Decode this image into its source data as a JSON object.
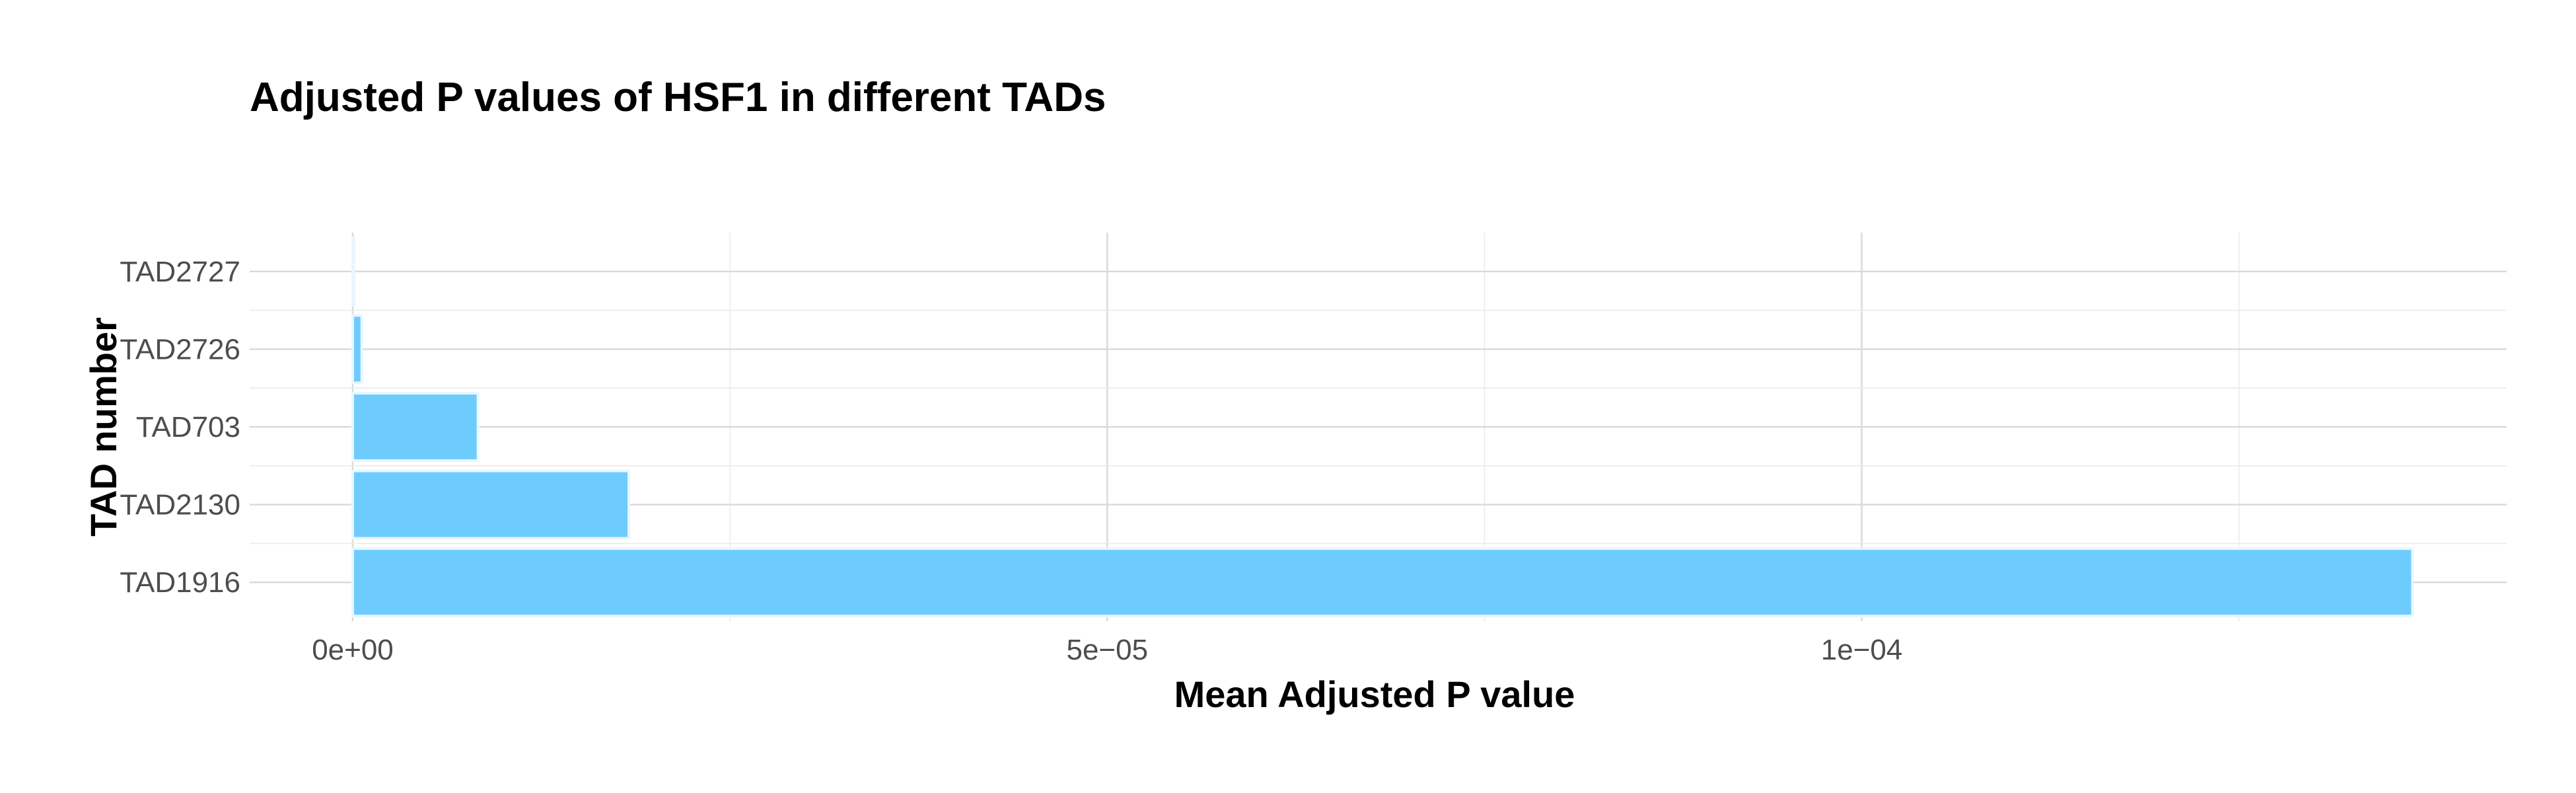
{
  "chart_data": {
    "type": "bar",
    "orientation": "horizontal",
    "title": "Adjusted P values of HSF1 in different TADs",
    "xlabel": "Mean Adjusted P value",
    "ylabel": "TAD number",
    "categories": [
      "TAD1916",
      "TAD2130",
      "TAD703",
      "TAD2726",
      "TAD2727"
    ],
    "values": [
      0.0001365,
      1.83e-05,
      8.3e-06,
      6e-07,
      5e-08
    ],
    "xlim": [
      0,
      0.000143
    ],
    "x_ticks": [
      {
        "value": 0,
        "label": "0e+00"
      },
      {
        "value": 5e-05,
        "label": "5e−05"
      },
      {
        "value": 0.0001,
        "label": "1e−04"
      }
    ],
    "x_minor_ticks": [
      2.5e-05,
      7.5e-05,
      0.000125
    ],
    "bar_color": "#6ECCFD",
    "grid": true,
    "legend": "none"
  }
}
